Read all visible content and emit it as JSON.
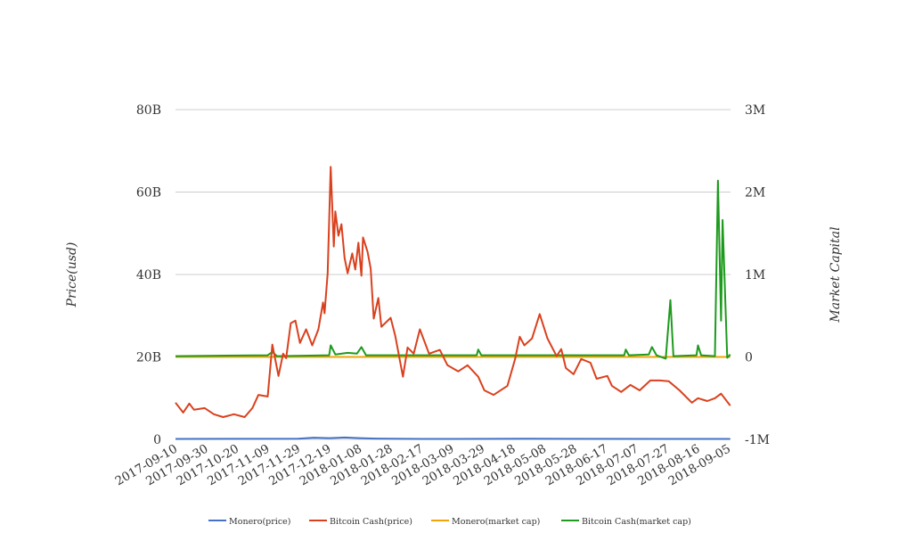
{
  "chart_data": {
    "type": "line",
    "title": "",
    "start_date": "2017-09-10",
    "x_tick_labels": [
      "2017-09-10",
      "2017-09-30",
      "2017-10-20",
      "2017-11-09",
      "2017-11-29",
      "2017-12-19",
      "2018-01-08",
      "2018-01-28",
      "2018-02-17",
      "2018-03-09",
      "2018-03-29",
      "2018-04-18",
      "2018-05-08",
      "2018-05-28",
      "2018-06-17",
      "2018-07-07",
      "2018-07-27",
      "2018-08-16",
      "2018-09-05"
    ],
    "x_tick_step_days": 20,
    "x_range_days": [
      0,
      361
    ],
    "ylabel_left": "Price(usd)",
    "ylabel_right": "Market Capital",
    "yleft": {
      "range": [
        0,
        80
      ],
      "unit": "B",
      "ticks": [
        0,
        20,
        40,
        60,
        80
      ],
      "tick_labels": [
        "0",
        "20B",
        "40B",
        "60B",
        "80B"
      ]
    },
    "yright": {
      "range": [
        -1,
        3
      ],
      "unit": "M",
      "ticks": [
        -1,
        0,
        1,
        2,
        3
      ],
      "tick_labels": [
        "-1M",
        "0",
        "1M",
        "2M",
        "3M"
      ]
    },
    "grid": true,
    "legend_position": "bottom",
    "series": [
      {
        "name": "Monero(price)",
        "axis": "left",
        "color": "#4472c4",
        "points": [
          [
            0,
            0.1
          ],
          [
            80,
            0.15
          ],
          [
            90,
            0.4
          ],
          [
            100,
            0.3
          ],
          [
            110,
            0.45
          ],
          [
            120,
            0.3
          ],
          [
            130,
            0.2
          ],
          [
            160,
            0.1
          ],
          [
            230,
            0.15
          ],
          [
            361,
            0.1
          ]
        ]
      },
      {
        "name": "Bitcoin Cash(price)",
        "axis": "left",
        "color": "#d9411e",
        "points": [
          [
            0,
            8.9
          ],
          [
            5,
            6.5
          ],
          [
            9,
            8.7
          ],
          [
            12,
            7.2
          ],
          [
            19,
            7.6
          ],
          [
            25,
            6.1
          ],
          [
            31,
            5.4
          ],
          [
            38,
            6.1
          ],
          [
            45,
            5.4
          ],
          [
            50,
            7.6
          ],
          [
            54,
            10.8
          ],
          [
            60,
            10.4
          ],
          [
            63,
            23
          ],
          [
            67,
            15.4
          ],
          [
            70,
            20.8
          ],
          [
            72,
            19.7
          ],
          [
            75,
            28.2
          ],
          [
            78,
            28.8
          ],
          [
            81,
            23.4
          ],
          [
            85,
            26.7
          ],
          [
            89,
            22.8
          ],
          [
            93,
            26.7
          ],
          [
            96,
            33.2
          ],
          [
            97,
            30.6
          ],
          [
            99,
            40.3
          ],
          [
            101,
            66.1
          ],
          [
            103,
            46.8
          ],
          [
            104,
            55.3
          ],
          [
            106,
            49.4
          ],
          [
            108,
            52.2
          ],
          [
            110,
            44
          ],
          [
            112,
            40.3
          ],
          [
            115,
            45.1
          ],
          [
            117,
            41.2
          ],
          [
            119,
            47.7
          ],
          [
            121,
            39.7
          ],
          [
            122,
            49
          ],
          [
            125,
            45.5
          ],
          [
            127,
            41.4
          ],
          [
            129,
            29.3
          ],
          [
            132,
            34.3
          ],
          [
            134,
            27.3
          ],
          [
            140,
            29.5
          ],
          [
            143,
            25.1
          ],
          [
            148,
            15.2
          ],
          [
            151,
            22.3
          ],
          [
            155,
            20.8
          ],
          [
            159,
            26.7
          ],
          [
            165,
            20.8
          ],
          [
            172,
            21.7
          ],
          [
            177,
            18
          ],
          [
            184,
            16.5
          ],
          [
            190,
            18
          ],
          [
            197,
            15.2
          ],
          [
            201,
            11.9
          ],
          [
            207,
            10.8
          ],
          [
            216,
            13
          ],
          [
            221,
            19.5
          ],
          [
            224,
            24.9
          ],
          [
            227,
            22.8
          ],
          [
            232,
            24.5
          ],
          [
            237,
            30.4
          ],
          [
            242,
            24.5
          ],
          [
            248,
            20.2
          ],
          [
            251,
            21.9
          ],
          [
            254,
            17.3
          ],
          [
            259,
            15.8
          ],
          [
            264,
            19.5
          ],
          [
            270,
            18.6
          ],
          [
            274,
            14.7
          ],
          [
            281,
            15.4
          ],
          [
            284,
            13
          ],
          [
            290,
            11.5
          ],
          [
            296,
            13.2
          ],
          [
            302,
            11.9
          ],
          [
            309,
            14.3
          ],
          [
            315,
            14.3
          ],
          [
            321,
            14.1
          ],
          [
            328,
            11.9
          ],
          [
            336,
            8.9
          ],
          [
            340,
            10
          ],
          [
            346,
            9.3
          ],
          [
            351,
            10
          ],
          [
            355,
            11.1
          ],
          [
            361,
            8.2
          ]
        ]
      },
      {
        "name": "Monero(market cap)",
        "axis": "right",
        "color": "#f0a30a",
        "points": [
          [
            0,
            0
          ],
          [
            361,
            0
          ]
        ]
      },
      {
        "name": "Bitcoin Cash(market cap)",
        "axis": "right",
        "color": "#1e9a1e",
        "points": [
          [
            0,
            0.01
          ],
          [
            60,
            0.02
          ],
          [
            63,
            0.06
          ],
          [
            66,
            0.01
          ],
          [
            100,
            0.02
          ],
          [
            101,
            0.14
          ],
          [
            104,
            0.03
          ],
          [
            112,
            0.05
          ],
          [
            118,
            0.04
          ],
          [
            121,
            0.12
          ],
          [
            124,
            0.02
          ],
          [
            196,
            0.02
          ],
          [
            197,
            0.09
          ],
          [
            199,
            0.02
          ],
          [
            292,
            0.02
          ],
          [
            293,
            0.09
          ],
          [
            295,
            0.02
          ],
          [
            308,
            0.03
          ],
          [
            310,
            0.12
          ],
          [
            313,
            0.02
          ],
          [
            319,
            -0.02
          ],
          [
            322,
            0.69
          ],
          [
            324,
            0.01
          ],
          [
            339,
            0.02
          ],
          [
            340,
            0.14
          ],
          [
            342,
            0.02
          ],
          [
            351,
            0.01
          ],
          [
            353,
            2.14
          ],
          [
            355,
            0.44
          ],
          [
            356,
            1.66
          ],
          [
            359,
            -0.01
          ],
          [
            361,
            0.03
          ]
        ]
      }
    ]
  }
}
